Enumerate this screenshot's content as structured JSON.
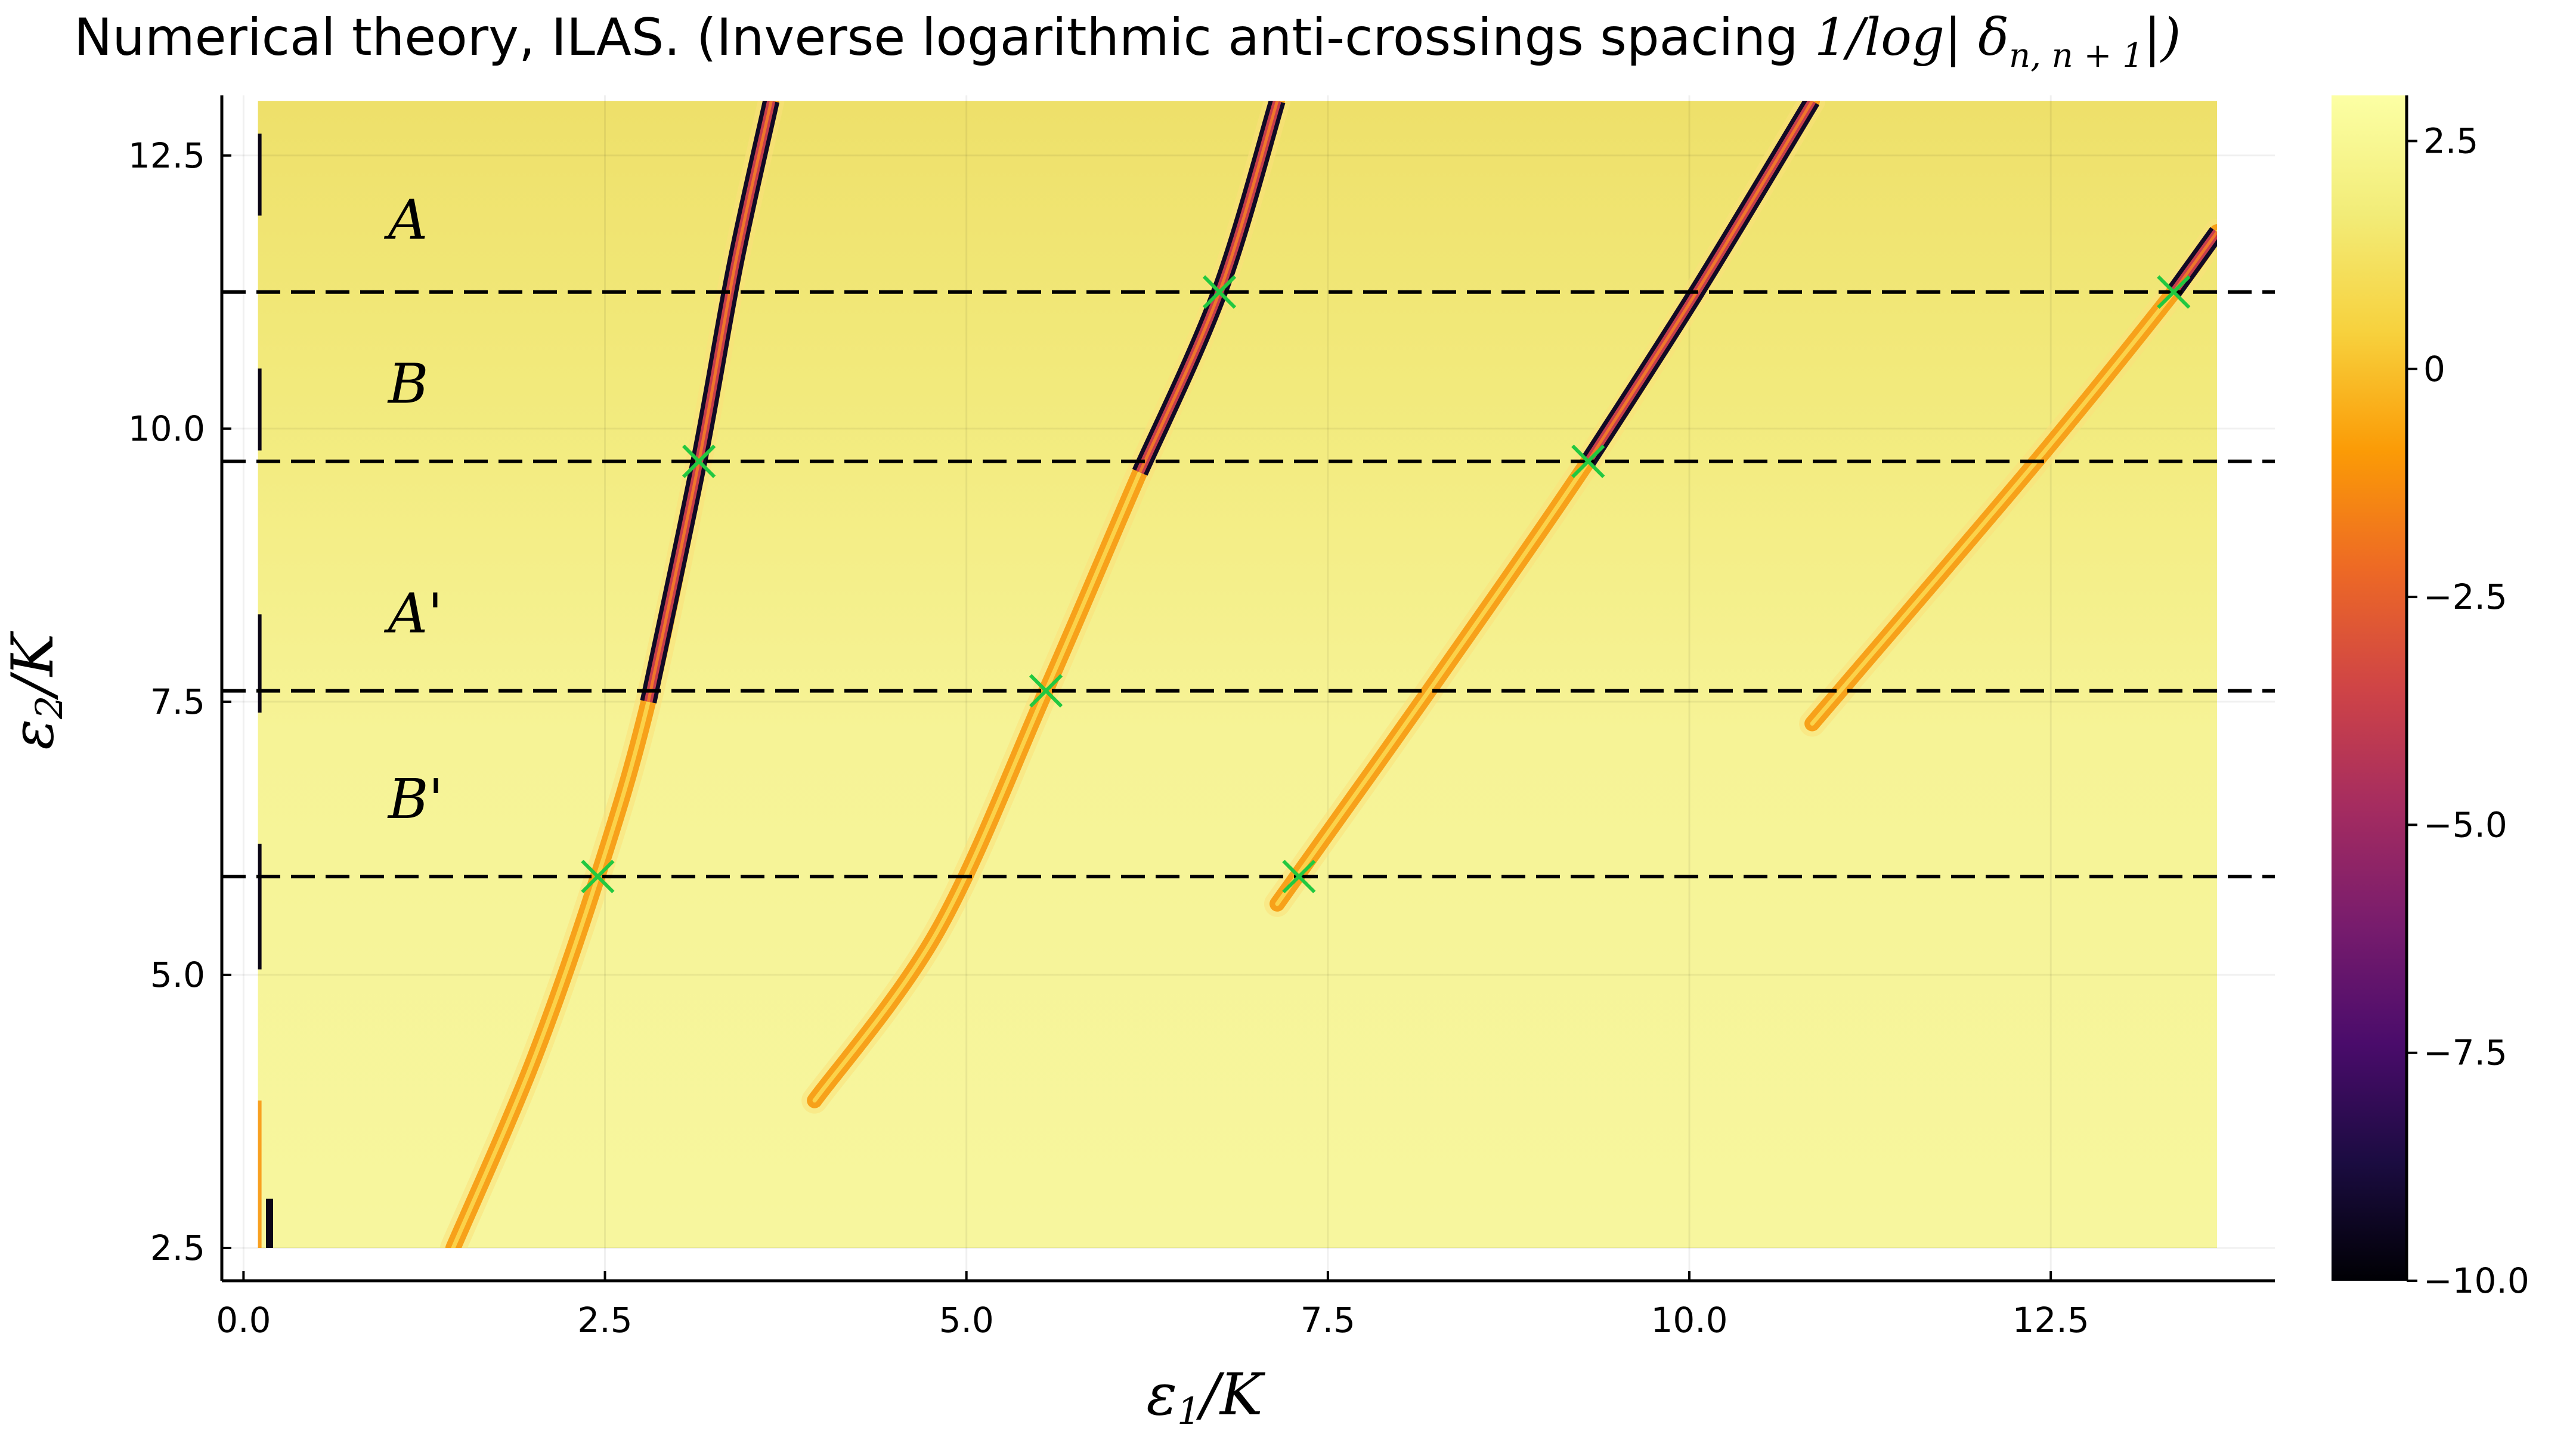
{
  "chart_data": {
    "type": "heatmap",
    "title": "Numerical theory, ILAS. (Inverse logarithmic anti-crossings spacing 1/log|δn, n+1|)",
    "title_text": "Numerical theory, ILAS. (Inverse logarithmic anti-crossings spacing ",
    "title_math": "1/log| δ",
    "title_math_sub": "n, n + 1",
    "title_math_end": "|)",
    "xlabel": "ε1/K",
    "ylabel": "ε2/K",
    "xlim": [
      -0.15,
      14.05
    ],
    "ylim": [
      2.2,
      13.05
    ],
    "data_extent": {
      "x": [
        0.1,
        13.65
      ],
      "y": [
        2.5,
        13.0
      ]
    },
    "x_ticks": [
      0.0,
      2.5,
      5.0,
      7.5,
      10.0,
      12.5
    ],
    "x_tick_labels": [
      "0.0",
      "2.5",
      "5.0",
      "7.5",
      "10.0",
      "12.5"
    ],
    "y_ticks": [
      2.5,
      5.0,
      7.5,
      10.0,
      12.5
    ],
    "y_tick_labels": [
      "2.5",
      "5.0",
      "7.5",
      "10.0",
      "12.5"
    ],
    "grid": true,
    "colorbar": {
      "colormap": "inferno",
      "range": [
        -10.0,
        3.0
      ],
      "ticks": [
        2.5,
        0,
        -2.5,
        -5.0,
        -7.5,
        -10.0
      ],
      "tick_labels": [
        "2.5",
        "0",
        "−2.5",
        "−5.0",
        "−7.5",
        "−10.0"
      ]
    },
    "hlines": [
      5.9,
      7.6,
      9.7,
      11.25
    ],
    "hline_style": "dashed",
    "region_labels": [
      {
        "label": "A",
        "x": 1.0,
        "y": 11.9
      },
      {
        "label": "B",
        "x": 1.0,
        "y": 10.4
      },
      {
        "label": "A'",
        "x": 1.0,
        "y": 8.3
      },
      {
        "label": "B'",
        "x": 1.0,
        "y": 6.6
      }
    ],
    "crossings": [
      {
        "x": 2.45,
        "y": 5.9
      },
      {
        "x": 3.15,
        "y": 9.7
      },
      {
        "x": 5.55,
        "y": 7.6
      },
      {
        "x": 6.75,
        "y": 11.25
      },
      {
        "x": 7.3,
        "y": 5.9
      },
      {
        "x": 9.3,
        "y": 9.7
      },
      {
        "x": 13.35,
        "y": 11.25
      }
    ],
    "crossing_color": "#22c840",
    "ridges": [
      {
        "points": [
          [
            1.45,
            2.5
          ],
          [
            2.0,
            4.2
          ],
          [
            2.45,
            5.9
          ],
          [
            2.8,
            7.5
          ],
          [
            3.15,
            9.7
          ],
          [
            3.4,
            11.5
          ],
          [
            3.65,
            13.0
          ]
        ],
        "hot": [
          6.0,
          13.0
        ]
      },
      {
        "points": [
          [
            3.95,
            3.85
          ],
          [
            4.8,
            5.4
          ],
          [
            5.55,
            7.6
          ],
          [
            6.2,
            9.6
          ],
          [
            6.75,
            11.25
          ],
          [
            7.15,
            13.0
          ]
        ],
        "hot": [
          7.8,
          13.0
        ]
      },
      {
        "points": [
          [
            7.15,
            5.65
          ],
          [
            8.2,
            7.6
          ],
          [
            9.3,
            9.7
          ],
          [
            10.05,
            11.25
          ],
          [
            10.85,
            13.0
          ]
        ],
        "hot": [
          9.5,
          13.0
        ]
      },
      {
        "points": [
          [
            10.85,
            7.3
          ],
          [
            12.4,
            9.7
          ],
          [
            13.35,
            11.25
          ],
          [
            13.65,
            11.8
          ]
        ],
        "hot": [
          11.25,
          11.8
        ]
      }
    ],
    "edge_strips": [
      {
        "x": 0.1,
        "y_range": [
          11.95,
          12.7
        ],
        "type": "dark"
      },
      {
        "x": 0.1,
        "y_range": [
          9.8,
          10.55
        ],
        "type": "dark"
      },
      {
        "x": 0.1,
        "y_range": [
          7.4,
          8.3
        ],
        "type": "dark"
      },
      {
        "x": 0.1,
        "y_range": [
          5.05,
          6.2
        ],
        "type": "dark"
      },
      {
        "x": 0.1,
        "y_range": [
          2.5,
          3.85
        ],
        "type": "orange"
      },
      {
        "x": 0.18,
        "y_range": [
          2.5,
          2.95
        ],
        "type": "dark"
      }
    ],
    "background": {
      "low": "#f6f59a",
      "high": "#eee264"
    }
  }
}
